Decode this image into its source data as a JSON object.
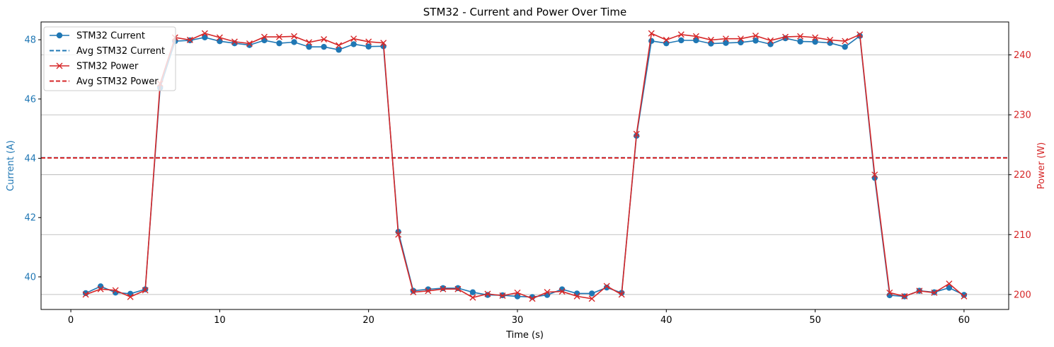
{
  "chart_data": {
    "type": "line",
    "title": "STM32 - Current and Power Over Time",
    "xlabel": "Time (s)",
    "ylabel_left": "Current (A)",
    "ylabel_right": "Power (W)",
    "xlim": [
      -2,
      63
    ],
    "ylim_left": [
      38.9,
      48.6
    ],
    "ylim_right": [
      197.5,
      245.5
    ],
    "xticks": [
      0,
      10,
      20,
      30,
      40,
      50,
      60
    ],
    "yticks_left": [
      40,
      42,
      44,
      46,
      48
    ],
    "yticks_right": [
      200,
      210,
      220,
      230,
      240
    ],
    "grid": "horizontal lines at right-axis ticks",
    "legend_position": "upper-left",
    "colors": {
      "current": "#1f77b4",
      "power": "#d62728",
      "grid": "#b0b0b0",
      "axis": "#000000"
    },
    "series": [
      {
        "name": "STM32 Current",
        "axis": "left",
        "style": "solid line with circle markers",
        "color": "#1f77b4",
        "x": [
          1,
          2,
          3,
          4,
          5,
          6,
          7,
          8,
          9,
          10,
          11,
          12,
          13,
          14,
          15,
          16,
          17,
          18,
          19,
          20,
          21,
          22,
          23,
          24,
          25,
          26,
          27,
          28,
          29,
          30,
          31,
          32,
          33,
          34,
          35,
          36,
          37,
          38,
          39,
          40,
          41,
          42,
          43,
          44,
          45,
          46,
          47,
          48,
          49,
          50,
          51,
          52,
          53,
          54,
          55,
          56,
          57,
          58,
          59,
          60
        ],
        "y": [
          39.45,
          39.68,
          39.47,
          39.43,
          39.58,
          46.38,
          47.95,
          47.98,
          48.08,
          47.95,
          47.88,
          47.82,
          47.98,
          47.88,
          47.92,
          47.76,
          47.76,
          47.66,
          47.85,
          47.77,
          47.78,
          41.52,
          39.53,
          39.58,
          39.62,
          39.62,
          39.48,
          39.39,
          39.38,
          39.34,
          39.32,
          39.39,
          39.58,
          39.44,
          39.44,
          39.64,
          39.46,
          44.76,
          47.96,
          47.88,
          47.98,
          47.98,
          47.87,
          47.89,
          47.91,
          47.97,
          47.85,
          48.05,
          47.94,
          47.93,
          47.89,
          47.76,
          48.13,
          43.34,
          39.38,
          39.34,
          39.53,
          39.48,
          39.63,
          39.39
        ]
      },
      {
        "name": "Avg STM32 Current",
        "axis": "left",
        "style": "dashed",
        "color": "#1f77b4",
        "value": 44.02
      },
      {
        "name": "STM32 Power",
        "axis": "right",
        "style": "solid line with x markers",
        "color": "#d62728",
        "x": [
          1,
          2,
          3,
          4,
          5,
          6,
          7,
          8,
          9,
          10,
          11,
          12,
          13,
          14,
          15,
          16,
          17,
          18,
          19,
          20,
          21,
          22,
          23,
          24,
          25,
          26,
          27,
          28,
          29,
          30,
          31,
          32,
          33,
          34,
          35,
          36,
          37,
          38,
          39,
          40,
          41,
          42,
          43,
          44,
          45,
          46,
          47,
          48,
          49,
          50,
          51,
          52,
          53,
          54,
          55,
          56,
          57,
          58,
          59,
          60
        ],
        "y": [
          200.0,
          200.9,
          200.7,
          199.6,
          200.7,
          235.2,
          242.9,
          242.5,
          243.6,
          242.9,
          242.2,
          241.9,
          243.0,
          243.0,
          243.1,
          242.1,
          242.6,
          241.6,
          242.7,
          242.2,
          242.0,
          210.0,
          200.4,
          200.6,
          200.9,
          200.9,
          199.5,
          200.1,
          199.8,
          200.3,
          199.3,
          200.4,
          200.5,
          199.7,
          199.3,
          201.4,
          200.0,
          226.8,
          243.6,
          242.5,
          243.4,
          243.1,
          242.5,
          242.7,
          242.7,
          243.2,
          242.4,
          243.0,
          243.1,
          242.9,
          242.5,
          242.3,
          243.4,
          220.0,
          200.3,
          199.7,
          200.6,
          200.3,
          201.8,
          199.7
        ]
      },
      {
        "name": "Avg STM32 Power",
        "axis": "right",
        "style": "dashed",
        "color": "#d62728",
        "value": 222.8
      }
    ]
  }
}
